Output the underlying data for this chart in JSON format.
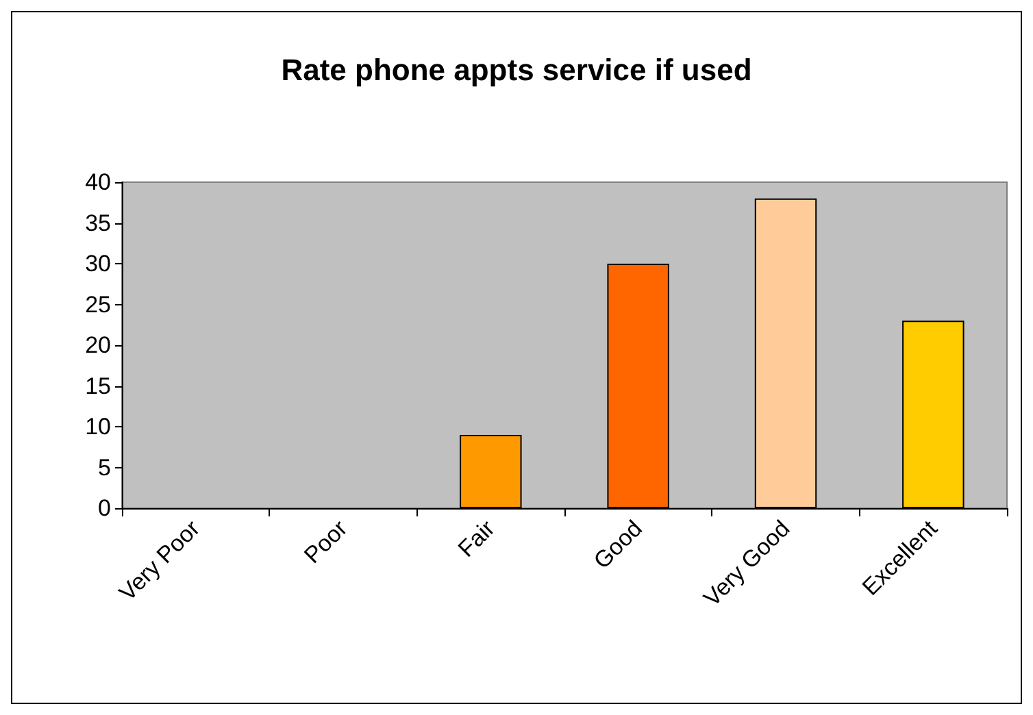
{
  "chart_data": {
    "type": "bar",
    "title": "Rate phone appts service if used",
    "categories": [
      "Very Poor",
      "Poor",
      "Fair",
      "Good",
      "Very Good",
      "Excellent"
    ],
    "values": [
      0,
      0,
      9,
      30,
      38,
      23
    ],
    "colors": [
      "#ff9900",
      "#ff9900",
      "#ff9900",
      "#ff6600",
      "#ffcc99",
      "#ffcc00"
    ],
    "ylim": [
      0,
      40
    ],
    "yticks": [
      0,
      5,
      10,
      15,
      20,
      25,
      30,
      35,
      40
    ],
    "grid": false
  }
}
